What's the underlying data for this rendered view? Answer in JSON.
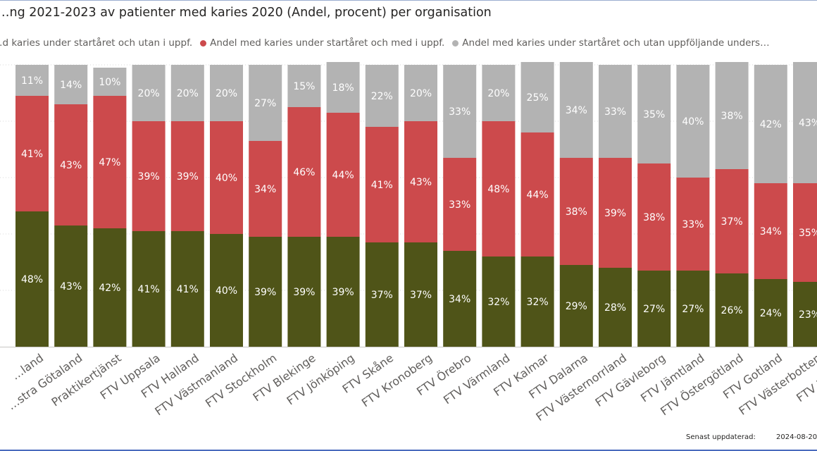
{
  "chart_data": {
    "type": "bar",
    "stacked": true,
    "title": "…ng 2021-2023 av patienter med karies 2020 (Andel, procent) per organisation",
    "categories": [
      "…land",
      "…stra Götaland",
      "Praktikertjänst",
      "FTV Uppsala",
      "FTV Halland",
      "FTV Västmanland",
      "FTV Stockholm",
      "FTV Blekinge",
      "FTV Jönköping",
      "FTV Skåne",
      "FTV Kronoberg",
      "FTV Örebro",
      "FTV Värmland",
      "FTV Kalmar",
      "FTV Dalarna",
      "FTV Västernorrland",
      "FTV Gävleborg",
      "FTV Jämtland",
      "FTV Östergötland",
      "FTV Gotland",
      "FTV Västerbotten",
      "FTV Norrbo…"
    ],
    "series": [
      {
        "name": "…d karies under startåret och utan i uppf.",
        "color": "#4f5418",
        "values": [
          48,
          43,
          42,
          41,
          41,
          40,
          39,
          39,
          39,
          37,
          37,
          34,
          32,
          32,
          29,
          28,
          27,
          27,
          26,
          24,
          23,
          null
        ],
        "labels": [
          "48%",
          "43%",
          "42%",
          "41%",
          "41%",
          "40%",
          "39%",
          "39%",
          "39%",
          "37%",
          "37%",
          "34%",
          "32%",
          "32%",
          "29%",
          "28%",
          "27%",
          "27%",
          "26%",
          "24%",
          "23%",
          ""
        ]
      },
      {
        "name": "Andel med karies under startåret och med i uppf.",
        "color": "#cc4a4c",
        "values": [
          41,
          43,
          47,
          39,
          39,
          40,
          34,
          46,
          44,
          41,
          43,
          33,
          48,
          44,
          38,
          39,
          38,
          33,
          37,
          34,
          35,
          null
        ],
        "labels": [
          "41%",
          "43%",
          "47%",
          "39%",
          "39%",
          "40%",
          "34%",
          "46%",
          "44%",
          "41%",
          "43%",
          "33%",
          "48%",
          "44%",
          "38%",
          "39%",
          "38%",
          "33%",
          "37%",
          "34%",
          "35%",
          ""
        ]
      },
      {
        "name": "Andel med karies under startåret och utan uppföljande unders…",
        "color": "#b3b3b3",
        "values": [
          11,
          14,
          10,
          20,
          20,
          20,
          27,
          15,
          18,
          22,
          20,
          33,
          20,
          25,
          34,
          33,
          35,
          40,
          38,
          42,
          43,
          null
        ],
        "labels": [
          "11%",
          "14%",
          "10%",
          "20%",
          "20%",
          "20%",
          "27%",
          "15%",
          "18%",
          "22%",
          "20%",
          "33%",
          "20%",
          "25%",
          "34%",
          "33%",
          "35%",
          "40%",
          "38%",
          "42%",
          "43%",
          ""
        ]
      }
    ],
    "ylim": [
      0,
      100
    ],
    "xlabel": "",
    "ylabel": "",
    "legend": "top",
    "grid": true
  },
  "footer": {
    "updated_label": "Senast uppdaterad:",
    "updated_value": "2024-08-20"
  }
}
